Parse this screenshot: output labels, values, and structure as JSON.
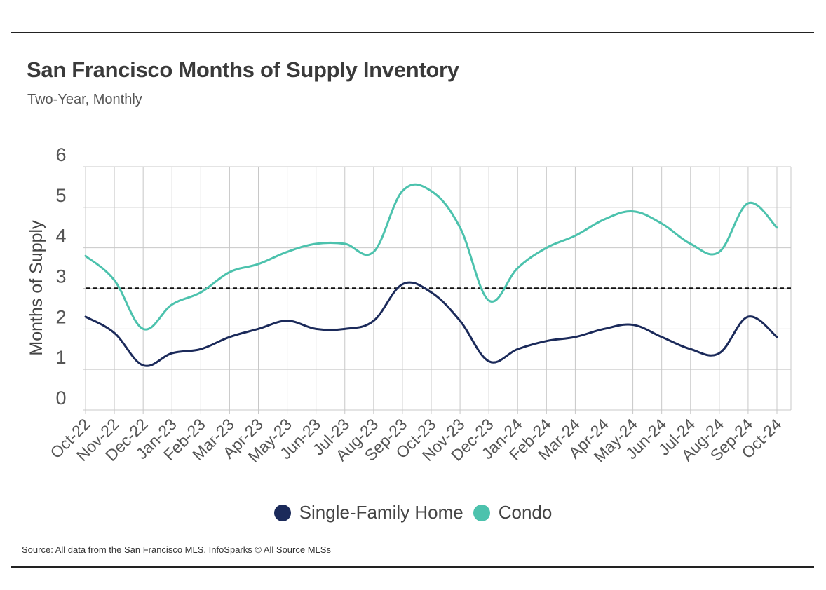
{
  "title": "San Francisco Months of Supply Inventory",
  "subtitle": "Two-Year, Monthly",
  "source": "Source:  All data from the San Francisco MLS. InfoSparks © All Source MLSs",
  "colors": {
    "single_family": "#1b2a5a",
    "condo": "#4cc2ad",
    "grid": "#c8c8c8",
    "threshold": "#111111"
  },
  "chart_data": {
    "type": "line",
    "title": "San Francisco Months of Supply Inventory",
    "subtitle": "Two-Year, Monthly",
    "xlabel": "",
    "ylabel": "Months of Supply",
    "ylim": [
      0,
      6
    ],
    "yticks": [
      0,
      1,
      2,
      3,
      4,
      5,
      6
    ],
    "grid": true,
    "legend": "bottom-center",
    "categories": [
      "Oct-22",
      "Nov-22",
      "Dec-22",
      "Jan-23",
      "Feb-23",
      "Mar-23",
      "Apr-23",
      "May-23",
      "Jun-23",
      "Jul-23",
      "Aug-23",
      "Sep-23",
      "Oct-23",
      "Nov-23",
      "Dec-23",
      "Jan-24",
      "Feb-24",
      "Mar-24",
      "Apr-24",
      "May-24",
      "Jun-24",
      "Jul-24",
      "Aug-24",
      "Sep-24",
      "Oct-24"
    ],
    "series": [
      {
        "name": "Single-Family Home",
        "color": "#1b2a5a",
        "values": [
          2.3,
          1.9,
          1.1,
          1.4,
          1.5,
          1.8,
          2.0,
          2.2,
          2.0,
          2.0,
          2.2,
          3.1,
          2.9,
          2.2,
          1.2,
          1.5,
          1.7,
          1.8,
          2.0,
          2.1,
          1.8,
          1.5,
          1.4,
          2.3,
          1.8
        ]
      },
      {
        "name": "Condo",
        "color": "#4cc2ad",
        "values": [
          3.8,
          3.2,
          2.0,
          2.6,
          2.9,
          3.4,
          3.6,
          3.9,
          4.1,
          4.1,
          3.9,
          5.4,
          5.4,
          4.5,
          2.7,
          3.5,
          4.0,
          4.3,
          4.7,
          4.9,
          4.6,
          4.1,
          3.9,
          5.1,
          4.5
        ]
      }
    ],
    "reference_line": {
      "y": 3,
      "style": "dashed"
    }
  }
}
